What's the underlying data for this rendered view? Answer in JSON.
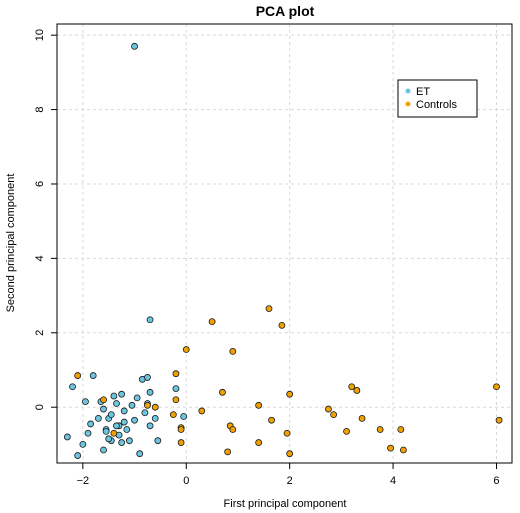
{
  "chart_data": {
    "type": "scatter",
    "title": "PCA plot",
    "xlabel": "First principal component",
    "ylabel": "Second principal component",
    "xlim": [
      -2.5,
      6.3
    ],
    "ylim": [
      -1.5,
      10.3
    ],
    "xticks": [
      -2,
      0,
      2,
      4,
      6
    ],
    "yticks": [
      0,
      2,
      4,
      6,
      8,
      10
    ],
    "grid": true,
    "legend_position": "top-right",
    "series": [
      {
        "name": "ET",
        "color": "#6cc5e0",
        "points": [
          [
            -1.0,
            9.7
          ],
          [
            -0.7,
            2.35
          ],
          [
            -2.3,
            -0.8
          ],
          [
            -2.2,
            0.55
          ],
          [
            -2.1,
            -1.3
          ],
          [
            -2.0,
            -1.0
          ],
          [
            -1.9,
            -0.7
          ],
          [
            -1.95,
            0.15
          ],
          [
            -1.85,
            -0.45
          ],
          [
            -1.8,
            0.85
          ],
          [
            -1.7,
            -0.3
          ],
          [
            -1.65,
            0.15
          ],
          [
            -1.6,
            -1.15
          ],
          [
            -1.55,
            -0.6
          ],
          [
            -1.5,
            -0.3
          ],
          [
            -1.45,
            -0.9
          ],
          [
            -1.45,
            -0.2
          ],
          [
            -1.4,
            0.3
          ],
          [
            -1.35,
            0.1
          ],
          [
            -1.3,
            -0.75
          ],
          [
            -1.3,
            -0.5
          ],
          [
            -1.25,
            0.35
          ],
          [
            -1.2,
            -0.1
          ],
          [
            -1.15,
            -0.6
          ],
          [
            -1.1,
            -0.9
          ],
          [
            -1.05,
            0.05
          ],
          [
            -1.0,
            -0.35
          ],
          [
            -0.95,
            0.25
          ],
          [
            -0.9,
            -1.25
          ],
          [
            -0.85,
            0.75
          ],
          [
            -0.8,
            -0.15
          ],
          [
            -0.75,
            0.1
          ],
          [
            -0.7,
            -0.5
          ],
          [
            -0.7,
            0.4
          ],
          [
            -0.75,
            0.8
          ],
          [
            -0.6,
            -0.3
          ],
          [
            -0.55,
            -0.9
          ],
          [
            -0.2,
            0.5
          ],
          [
            -0.05,
            -0.25
          ],
          [
            -1.6,
            -0.05
          ],
          [
            -1.55,
            -0.65
          ],
          [
            -1.5,
            -0.85
          ],
          [
            -1.35,
            -0.5
          ],
          [
            -1.25,
            -0.95
          ],
          [
            -1.2,
            -0.4
          ]
        ]
      },
      {
        "name": "Controls",
        "color": "#f0a000",
        "points": [
          [
            -2.1,
            0.85
          ],
          [
            -1.6,
            0.2
          ],
          [
            -1.4,
            -0.7
          ],
          [
            -0.75,
            0.05
          ],
          [
            -0.6,
            0.0
          ],
          [
            -0.25,
            -0.2
          ],
          [
            -0.2,
            0.2
          ],
          [
            -0.2,
            0.9
          ],
          [
            -0.1,
            -0.55
          ],
          [
            -0.1,
            -0.95
          ],
          [
            -0.1,
            -0.6
          ],
          [
            0.0,
            1.55
          ],
          [
            0.3,
            -0.1
          ],
          [
            0.5,
            2.3
          ],
          [
            0.7,
            0.4
          ],
          [
            0.8,
            -1.2
          ],
          [
            0.85,
            -0.5
          ],
          [
            0.9,
            -0.6
          ],
          [
            0.9,
            1.5
          ],
          [
            1.4,
            0.05
          ],
          [
            1.4,
            -0.95
          ],
          [
            1.6,
            2.65
          ],
          [
            1.65,
            -0.35
          ],
          [
            1.85,
            2.2
          ],
          [
            1.95,
            -0.7
          ],
          [
            2.0,
            0.35
          ],
          [
            2.0,
            -1.25
          ],
          [
            2.75,
            -0.05
          ],
          [
            2.85,
            -0.2
          ],
          [
            3.1,
            -0.65
          ],
          [
            3.2,
            0.55
          ],
          [
            3.3,
            0.45
          ],
          [
            3.4,
            -0.3
          ],
          [
            3.75,
            -0.6
          ],
          [
            3.95,
            -1.1
          ],
          [
            4.15,
            -0.6
          ],
          [
            4.2,
            -1.15
          ],
          [
            6.0,
            0.55
          ],
          [
            6.05,
            -0.35
          ]
        ]
      }
    ]
  }
}
